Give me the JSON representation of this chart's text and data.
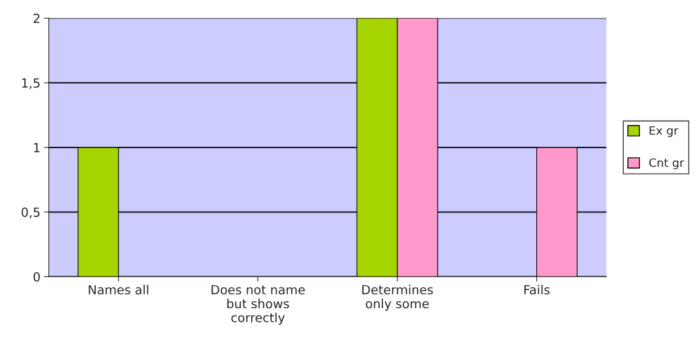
{
  "chart_data": {
    "type": "bar",
    "categories": [
      "Names all",
      "Does not name\nbut shows\ncorrectly",
      "Determines\nonly some",
      "Fails"
    ],
    "series": [
      {
        "name": "Ex gr",
        "color": "#a6d400",
        "values": [
          1,
          0,
          2,
          0
        ]
      },
      {
        "name": "Cnt gr",
        "color": "#ff99cc",
        "values": [
          0,
          0,
          2,
          1
        ]
      }
    ],
    "ylim": [
      0,
      2
    ],
    "yticks": [
      0,
      {
        "value": 0.5,
        "label": "0,5"
      },
      1,
      {
        "value": 1.5,
        "label": "1,5"
      },
      2
    ],
    "grid": "y",
    "legend": "right"
  }
}
